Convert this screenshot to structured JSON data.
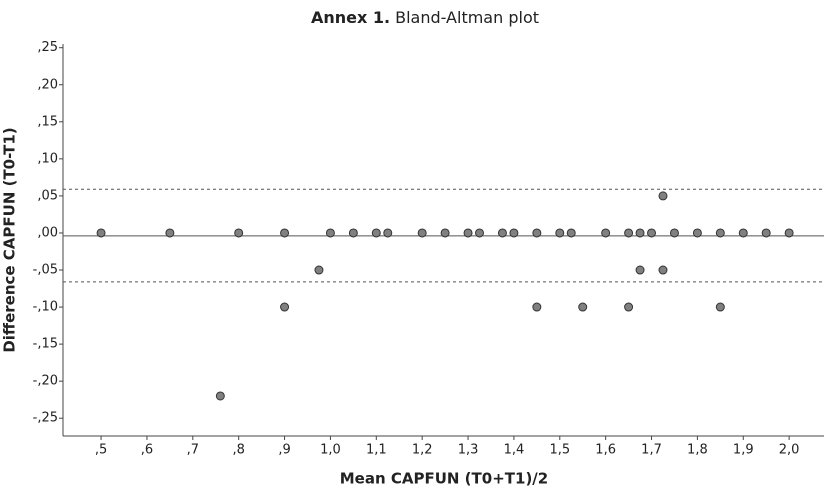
{
  "chart_data": {
    "type": "scatter",
    "title_prefix": "Annex 1.",
    "title": "Bland-Altman plot",
    "xlabel": "Mean CAPFUN (T0+T1)/2",
    "ylabel": "Difference CAPFUN (T0-T1)",
    "color": "#808080",
    "edge_color": "#333333",
    "x": [
      0.5,
      0.65,
      0.8,
      0.9,
      1.0,
      1.05,
      1.1,
      1.125,
      1.2,
      1.25,
      1.3,
      1.325,
      1.375,
      1.4,
      1.45,
      1.5,
      1.525,
      1.6,
      1.65,
      1.675,
      1.7,
      1.75,
      1.8,
      1.85,
      1.9,
      1.95,
      2.0,
      0.975,
      0.9,
      0.76,
      1.45,
      1.55,
      1.65,
      1.675,
      1.725,
      1.725,
      1.85
    ],
    "values": [
      0,
      0,
      0,
      0,
      0,
      0,
      0,
      0,
      0,
      0,
      0,
      0,
      0,
      0,
      0,
      0,
      0,
      0,
      0,
      0,
      0,
      0,
      0,
      0,
      0,
      0,
      0,
      -0.05,
      -0.1,
      -0.22,
      -0.1,
      -0.1,
      -0.1,
      -0.05,
      -0.05,
      0.05,
      -0.1
    ],
    "mean_line": -0.004,
    "upper_loa": 0.059,
    "lower_loa": -0.066,
    "xlim": [
      0.417,
      2.076
    ],
    "ylim": [
      -0.274,
      0.255
    ],
    "xticks": [
      {
        "value": 0.5,
        "label": ",5"
      },
      {
        "value": 0.6,
        "label": ",6"
      },
      {
        "value": 0.7,
        "label": ",7"
      },
      {
        "value": 0.8,
        "label": ",8"
      },
      {
        "value": 0.9,
        "label": ",9"
      },
      {
        "value": 1.0,
        "label": "1,0"
      },
      {
        "value": 1.1,
        "label": "1,1"
      },
      {
        "value": 1.2,
        "label": "1,2"
      },
      {
        "value": 1.3,
        "label": "1,3"
      },
      {
        "value": 1.4,
        "label": "1,4"
      },
      {
        "value": 1.5,
        "label": "1,5"
      },
      {
        "value": 1.6,
        "label": "1,6"
      },
      {
        "value": 1.7,
        "label": "1,7"
      },
      {
        "value": 1.8,
        "label": "1,8"
      },
      {
        "value": 1.9,
        "label": "1,9"
      },
      {
        "value": 2.0,
        "label": "2,0"
      }
    ],
    "yticks": [
      {
        "value": 0.25,
        "label": ",25"
      },
      {
        "value": 0.2,
        "label": ",20"
      },
      {
        "value": 0.15,
        "label": ",15"
      },
      {
        "value": 0.1,
        "label": ",10"
      },
      {
        "value": 0.05,
        "label": ",05"
      },
      {
        "value": 0,
        "label": ",00"
      },
      {
        "value": -0.05,
        "label": "-,05"
      },
      {
        "value": -0.1,
        "label": "-,10"
      },
      {
        "value": -0.15,
        "label": "-,15"
      },
      {
        "value": -0.2,
        "label": "-,20"
      },
      {
        "value": -0.25,
        "label": "-,25"
      }
    ]
  }
}
